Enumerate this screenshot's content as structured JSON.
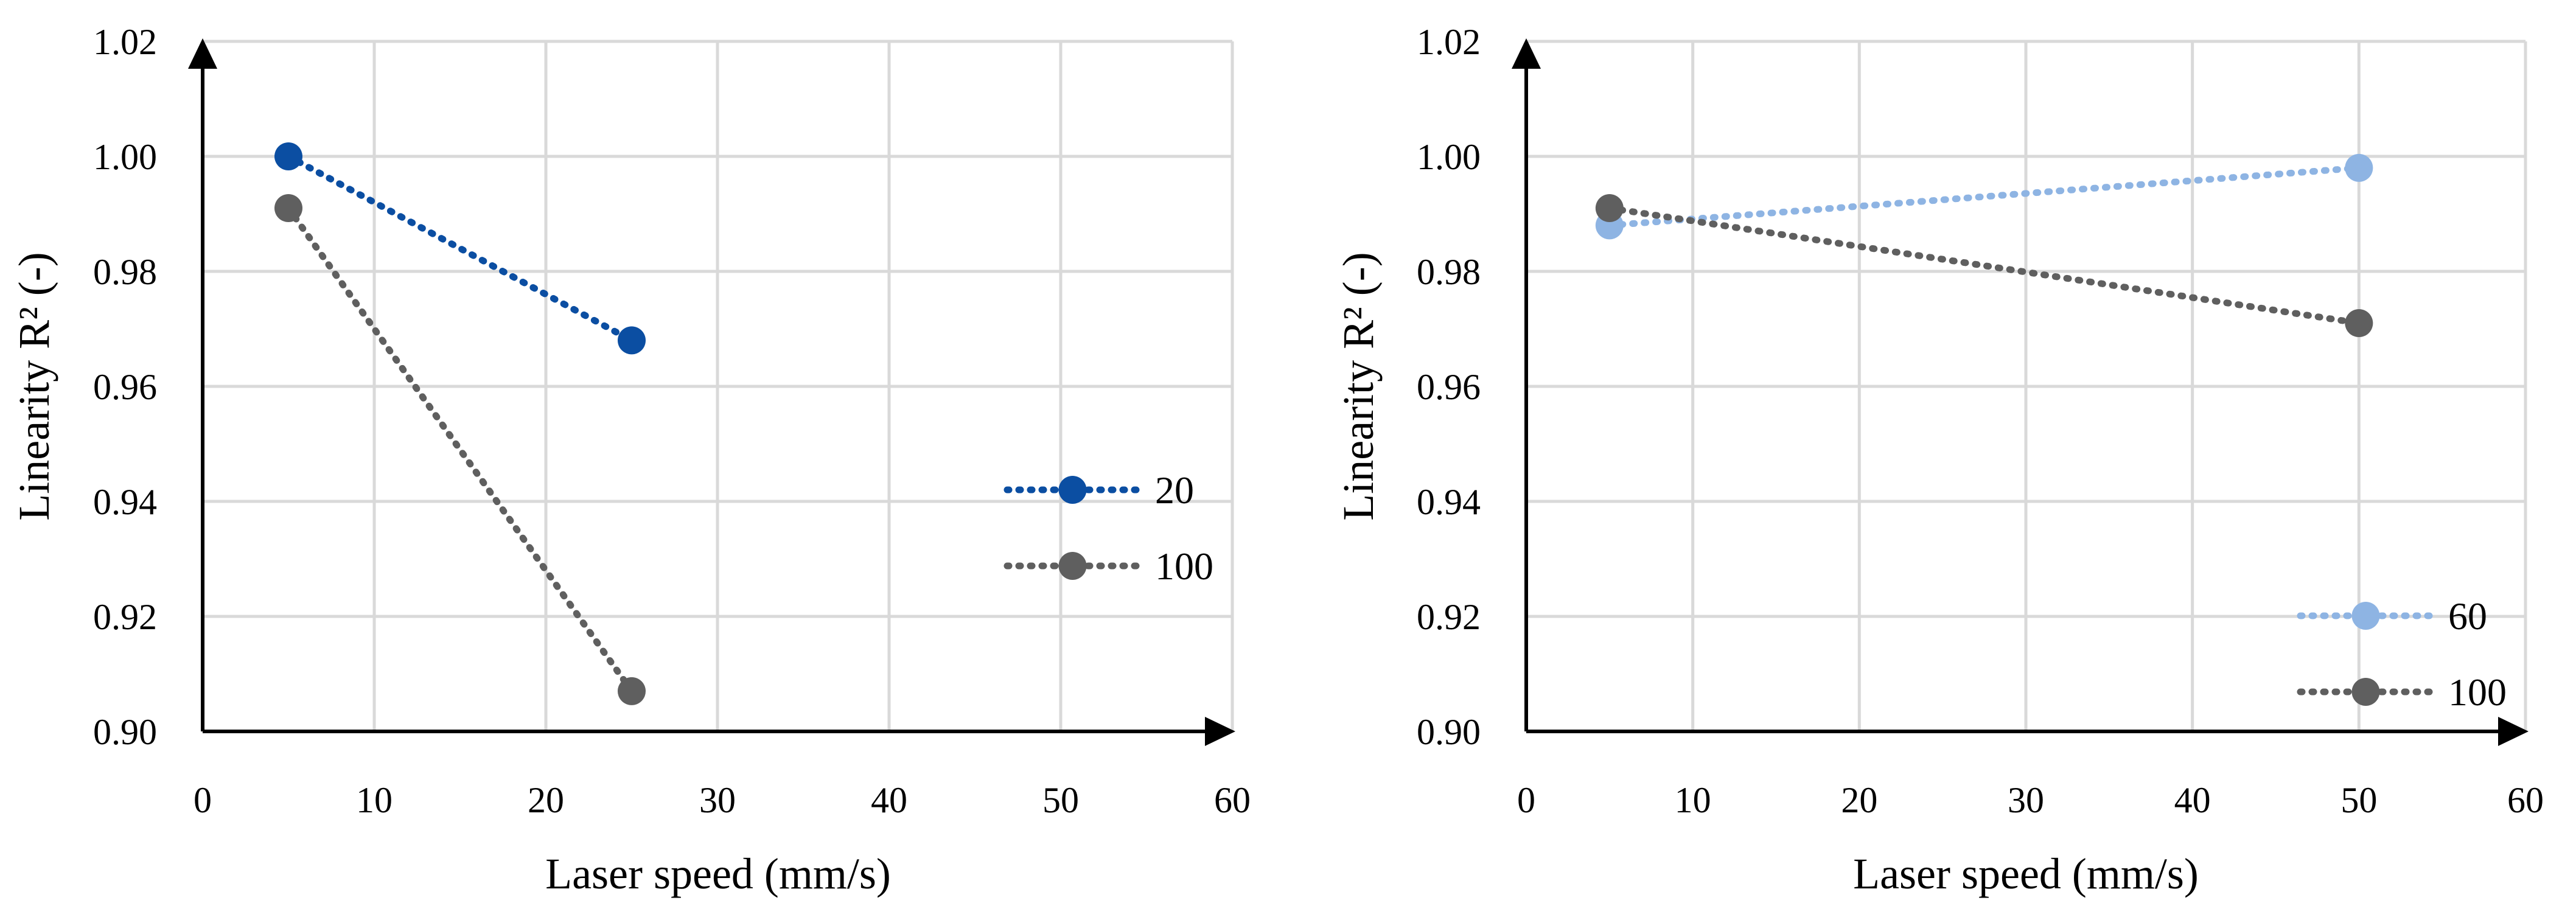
{
  "chart_data": [
    {
      "type": "line",
      "title": "",
      "xlabel": "Laser speed (mm/s)",
      "ylabel": "Linearity R² (-)",
      "xlim": [
        0,
        60
      ],
      "ylim": [
        0.9,
        1.02
      ],
      "x_ticks": [
        "0",
        "10",
        "20",
        "30",
        "40",
        "50",
        "60"
      ],
      "y_ticks": [
        "0.90",
        "0.92",
        "0.94",
        "0.96",
        "0.98",
        "1.00",
        "1.02"
      ],
      "grid": true,
      "legend_position": "right",
      "line_style": "dotted",
      "series": [
        {
          "name": "20",
          "color": "#0B4EA2",
          "x": [
            5,
            25
          ],
          "y": [
            1.0,
            0.968
          ]
        },
        {
          "name": "100",
          "color": "#5F5F5F",
          "x": [
            5,
            25
          ],
          "y": [
            0.991,
            0.907
          ]
        }
      ]
    },
    {
      "type": "line",
      "title": "",
      "xlabel": "Laser speed (mm/s)",
      "ylabel": "Linearity R² (-)",
      "xlim": [
        0,
        60
      ],
      "ylim": [
        0.9,
        1.02
      ],
      "x_ticks": [
        "0",
        "10",
        "20",
        "30",
        "40",
        "50",
        "60"
      ],
      "y_ticks": [
        "0.90",
        "0.92",
        "0.94",
        "0.96",
        "0.98",
        "1.00",
        "1.02"
      ],
      "grid": true,
      "legend_position": "bottom-right",
      "line_style": "dotted",
      "series": [
        {
          "name": "60",
          "color": "#8EB4E3",
          "x": [
            5,
            50
          ],
          "y": [
            0.988,
            0.998
          ]
        },
        {
          "name": "100",
          "color": "#5F5F5F",
          "x": [
            5,
            50
          ],
          "y": [
            0.991,
            0.971
          ]
        }
      ]
    }
  ]
}
